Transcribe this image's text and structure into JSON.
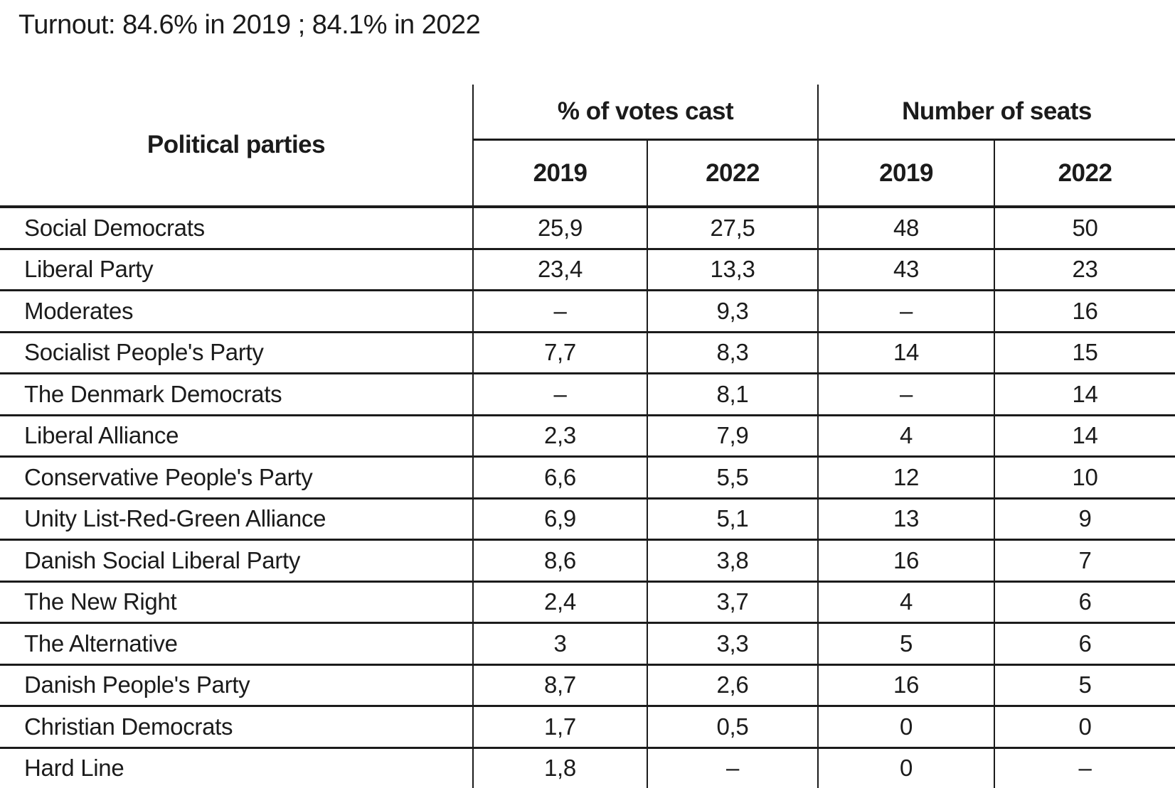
{
  "title": "Turnout: 84.6% in 2019 ; 84.1% in 2022",
  "table": {
    "corner_header": "Political parties",
    "group_headers": [
      "% of votes cast",
      "Number of seats"
    ],
    "year_headers": [
      "2019",
      "2022",
      "2019",
      "2022"
    ],
    "rows": [
      {
        "party": "Social Democrats",
        "values": [
          "25,9",
          "27,5",
          "48",
          "50"
        ]
      },
      {
        "party": "Liberal Party",
        "values": [
          "23,4",
          "13,3",
          "43",
          "23"
        ]
      },
      {
        "party": "Moderates",
        "values": [
          "–",
          "9,3",
          "–",
          "16"
        ]
      },
      {
        "party": "Socialist People's Party",
        "values": [
          "7,7",
          "8,3",
          "14",
          "15"
        ]
      },
      {
        "party": "The Denmark Democrats",
        "values": [
          "–",
          "8,1",
          "–",
          "14"
        ]
      },
      {
        "party": "Liberal Alliance",
        "values": [
          "2,3",
          "7,9",
          "4",
          "14"
        ]
      },
      {
        "party": "Conservative People's Party",
        "values": [
          "6,6",
          "5,5",
          "12",
          "10"
        ]
      },
      {
        "party": "Unity List-Red-Green Alliance",
        "values": [
          "6,9",
          "5,1",
          "13",
          "9"
        ]
      },
      {
        "party": "Danish Social Liberal Party",
        "values": [
          "8,6",
          "3,8",
          "16",
          "7"
        ]
      },
      {
        "party": "The New Right",
        "values": [
          "2,4",
          "3,7",
          "4",
          "6"
        ]
      },
      {
        "party": "The Alternative",
        "values": [
          "3",
          "3,3",
          "5",
          "6"
        ]
      },
      {
        "party": "Danish People's Party",
        "values": [
          "8,7",
          "2,6",
          "16",
          "5"
        ]
      },
      {
        "party": "Christian Democrats",
        "values": [
          "1,7",
          "0,5",
          "0",
          "0"
        ]
      },
      {
        "party": "Hard Line",
        "values": [
          "1,8",
          "–",
          "0",
          "–"
        ]
      }
    ]
  },
  "colors": {
    "text": "#1b1b1b",
    "border": "#1b1b1b",
    "background": "#ffffff"
  }
}
